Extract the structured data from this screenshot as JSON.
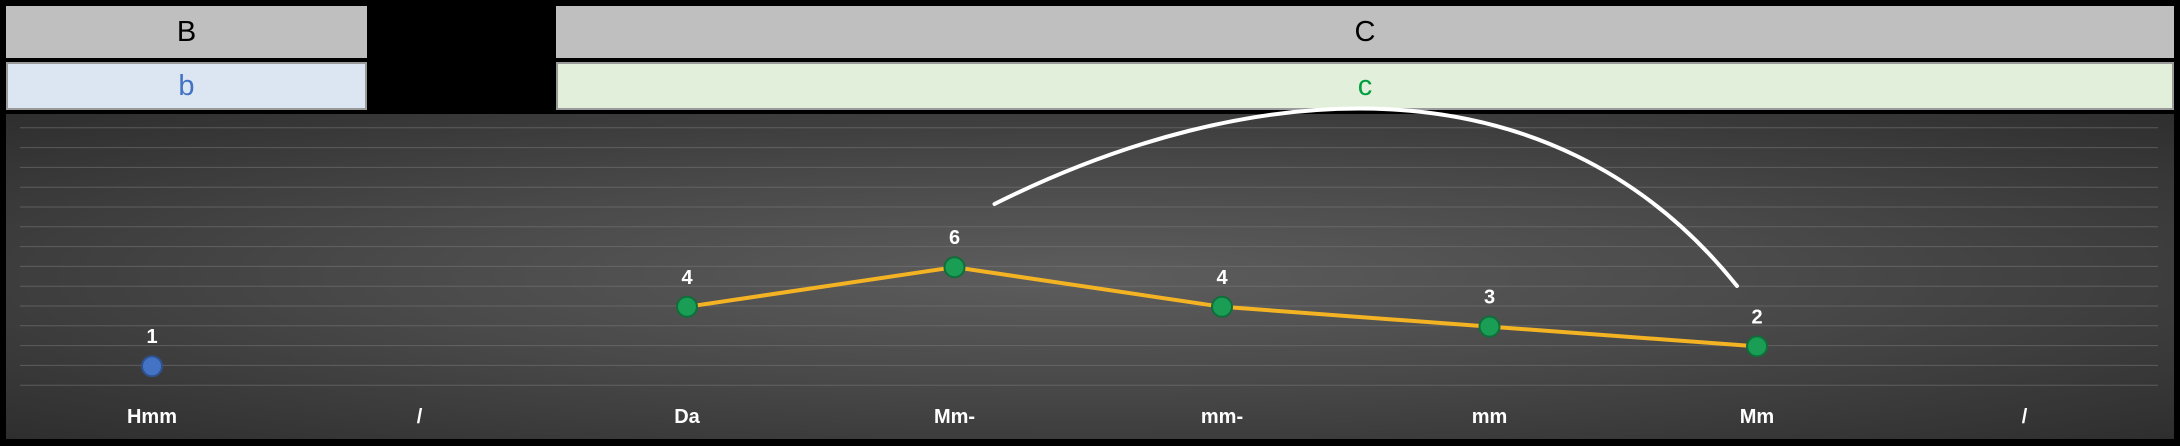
{
  "headers": {
    "b_title": "B",
    "c_title": "C"
  },
  "subheaders": {
    "b_label": "b",
    "b_color": "#4472c4",
    "b_bg": "#dce6f2",
    "c_label": "c",
    "c_color": "#00a040",
    "c_bg": "#e2efda"
  },
  "colors": {
    "line": "#f4b323",
    "point_green": "#1a9e55",
    "point_blue": "#4472c4",
    "arc": "#ffffff",
    "header_bg": "#bfbfbf"
  },
  "chart_data": {
    "type": "line",
    "categories": [
      "Hmm",
      "/",
      "Da",
      "Mm-",
      "mm-",
      "mm",
      "Mm",
      "/"
    ],
    "series": [
      {
        "group": "b",
        "points": [
          {
            "category": "Hmm",
            "value": 1
          }
        ]
      },
      {
        "group": "c",
        "points": [
          {
            "category": "Da",
            "value": 4
          },
          {
            "category": "Mm-",
            "value": 6
          },
          {
            "category": "mm-",
            "value": 4
          },
          {
            "category": "mm",
            "value": 3
          },
          {
            "category": "Mm",
            "value": 2
          }
        ]
      }
    ],
    "ylim": [
      0,
      14
    ],
    "grid": true,
    "annotations": [
      {
        "type": "arc",
        "from": "Mm-",
        "to": "Mm"
      }
    ]
  }
}
